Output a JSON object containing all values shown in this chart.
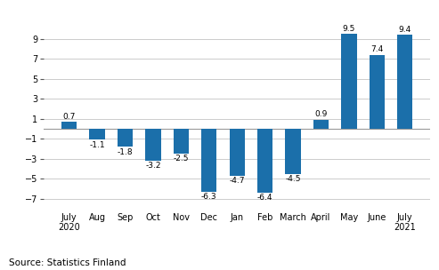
{
  "categories": [
    "July\n2020",
    "Aug",
    "Sep",
    "Oct",
    "Nov",
    "Dec",
    "Jan",
    "Feb",
    "March",
    "April",
    "May",
    "June",
    "July\n2021"
  ],
  "values": [
    0.7,
    -1.1,
    -1.8,
    -3.2,
    -2.5,
    -6.3,
    -4.7,
    -6.4,
    -4.5,
    0.9,
    9.5,
    7.4,
    9.4
  ],
  "bar_color": "#1b6faa",
  "ylim": [
    -8.2,
    11.0
  ],
  "yticks": [
    -7,
    -5,
    -3,
    -1,
    1,
    3,
    5,
    7,
    9
  ],
  "source_text": "Source: Statistics Finland",
  "background_color": "#ffffff",
  "grid_color": "#cccccc",
  "label_fontsize": 6.5,
  "tick_fontsize": 7.0,
  "source_fontsize": 7.5,
  "bar_width": 0.55
}
